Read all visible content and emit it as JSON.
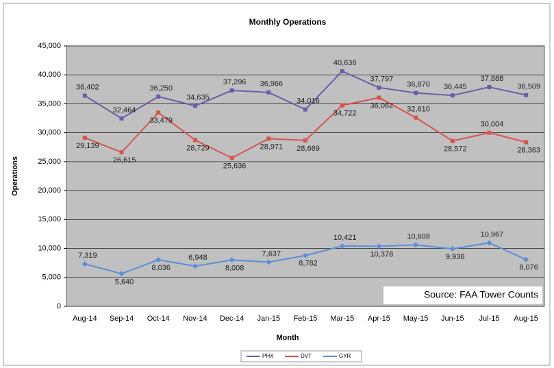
{
  "chart_data": {
    "type": "line",
    "title": "Monthly Operations",
    "x_label": "Month",
    "y_label": "Operations",
    "annotation": "Source: FAA Tower Counts",
    "categories": [
      "Aug-14",
      "Sep-14",
      "Oct-14",
      "Nov-14",
      "Dec-14",
      "Jan-15",
      "Feb-15",
      "Mar-15",
      "Apr-15",
      "May-15",
      "Jun-15",
      "Jul-15",
      "Aug-15"
    ],
    "series": [
      {
        "name": "PHX",
        "color": "#6a5ea6",
        "values": [
          36402,
          32464,
          36250,
          34635,
          37296,
          36966,
          34016,
          40636,
          37797,
          36870,
          36445,
          37888,
          36509
        ],
        "value_labels": [
          "36,402",
          "32,464",
          "36,250",
          "34,635",
          "37,296",
          "36,966",
          "34,016",
          "40,636",
          "37,797",
          "36,870",
          "36,445",
          "37,888",
          "36,509"
        ]
      },
      {
        "name": "DVT",
        "color": "#d9534f",
        "values": [
          29139,
          26615,
          33479,
          28729,
          25636,
          28971,
          28669,
          34722,
          36062,
          32610,
          28572,
          30004,
          28363
        ],
        "value_labels": [
          "29,139",
          "26,615",
          "33,479",
          "28,729",
          "25,636",
          "28,971",
          "28,669",
          "34,722",
          "36,062",
          "32,610",
          "28,572",
          "30,004",
          "28,363"
        ]
      },
      {
        "name": "GYR",
        "color": "#5b8ed6",
        "values": [
          7319,
          5640,
          8036,
          6948,
          8008,
          7637,
          8782,
          10421,
          10378,
          10608,
          9936,
          10967,
          8076
        ],
        "value_labels": [
          "7,319",
          "5,640",
          "8,036",
          "6,948",
          "8,008",
          "7,637",
          "8,782",
          "10,421",
          "10,378",
          "10,608",
          "9,936",
          "10,967",
          "8,076"
        ]
      }
    ],
    "ylim": [
      0,
      45000
    ],
    "yticks": [
      0,
      {
        "value": 5000,
        "label": "5,000"
      },
      {
        "value": 10000,
        "label": "10,000"
      },
      {
        "value": 15000,
        "label": "15,000"
      },
      {
        "value": 20000,
        "label": "20,000"
      },
      {
        "value": 25000,
        "label": "25,000"
      },
      {
        "value": 30000,
        "label": "30,000"
      },
      {
        "value": 35000,
        "label": "35,000"
      },
      {
        "value": 40000,
        "label": "40,000"
      },
      {
        "value": 45000,
        "label": "45,000"
      }
    ],
    "grid": true,
    "legend": "bottom"
  }
}
